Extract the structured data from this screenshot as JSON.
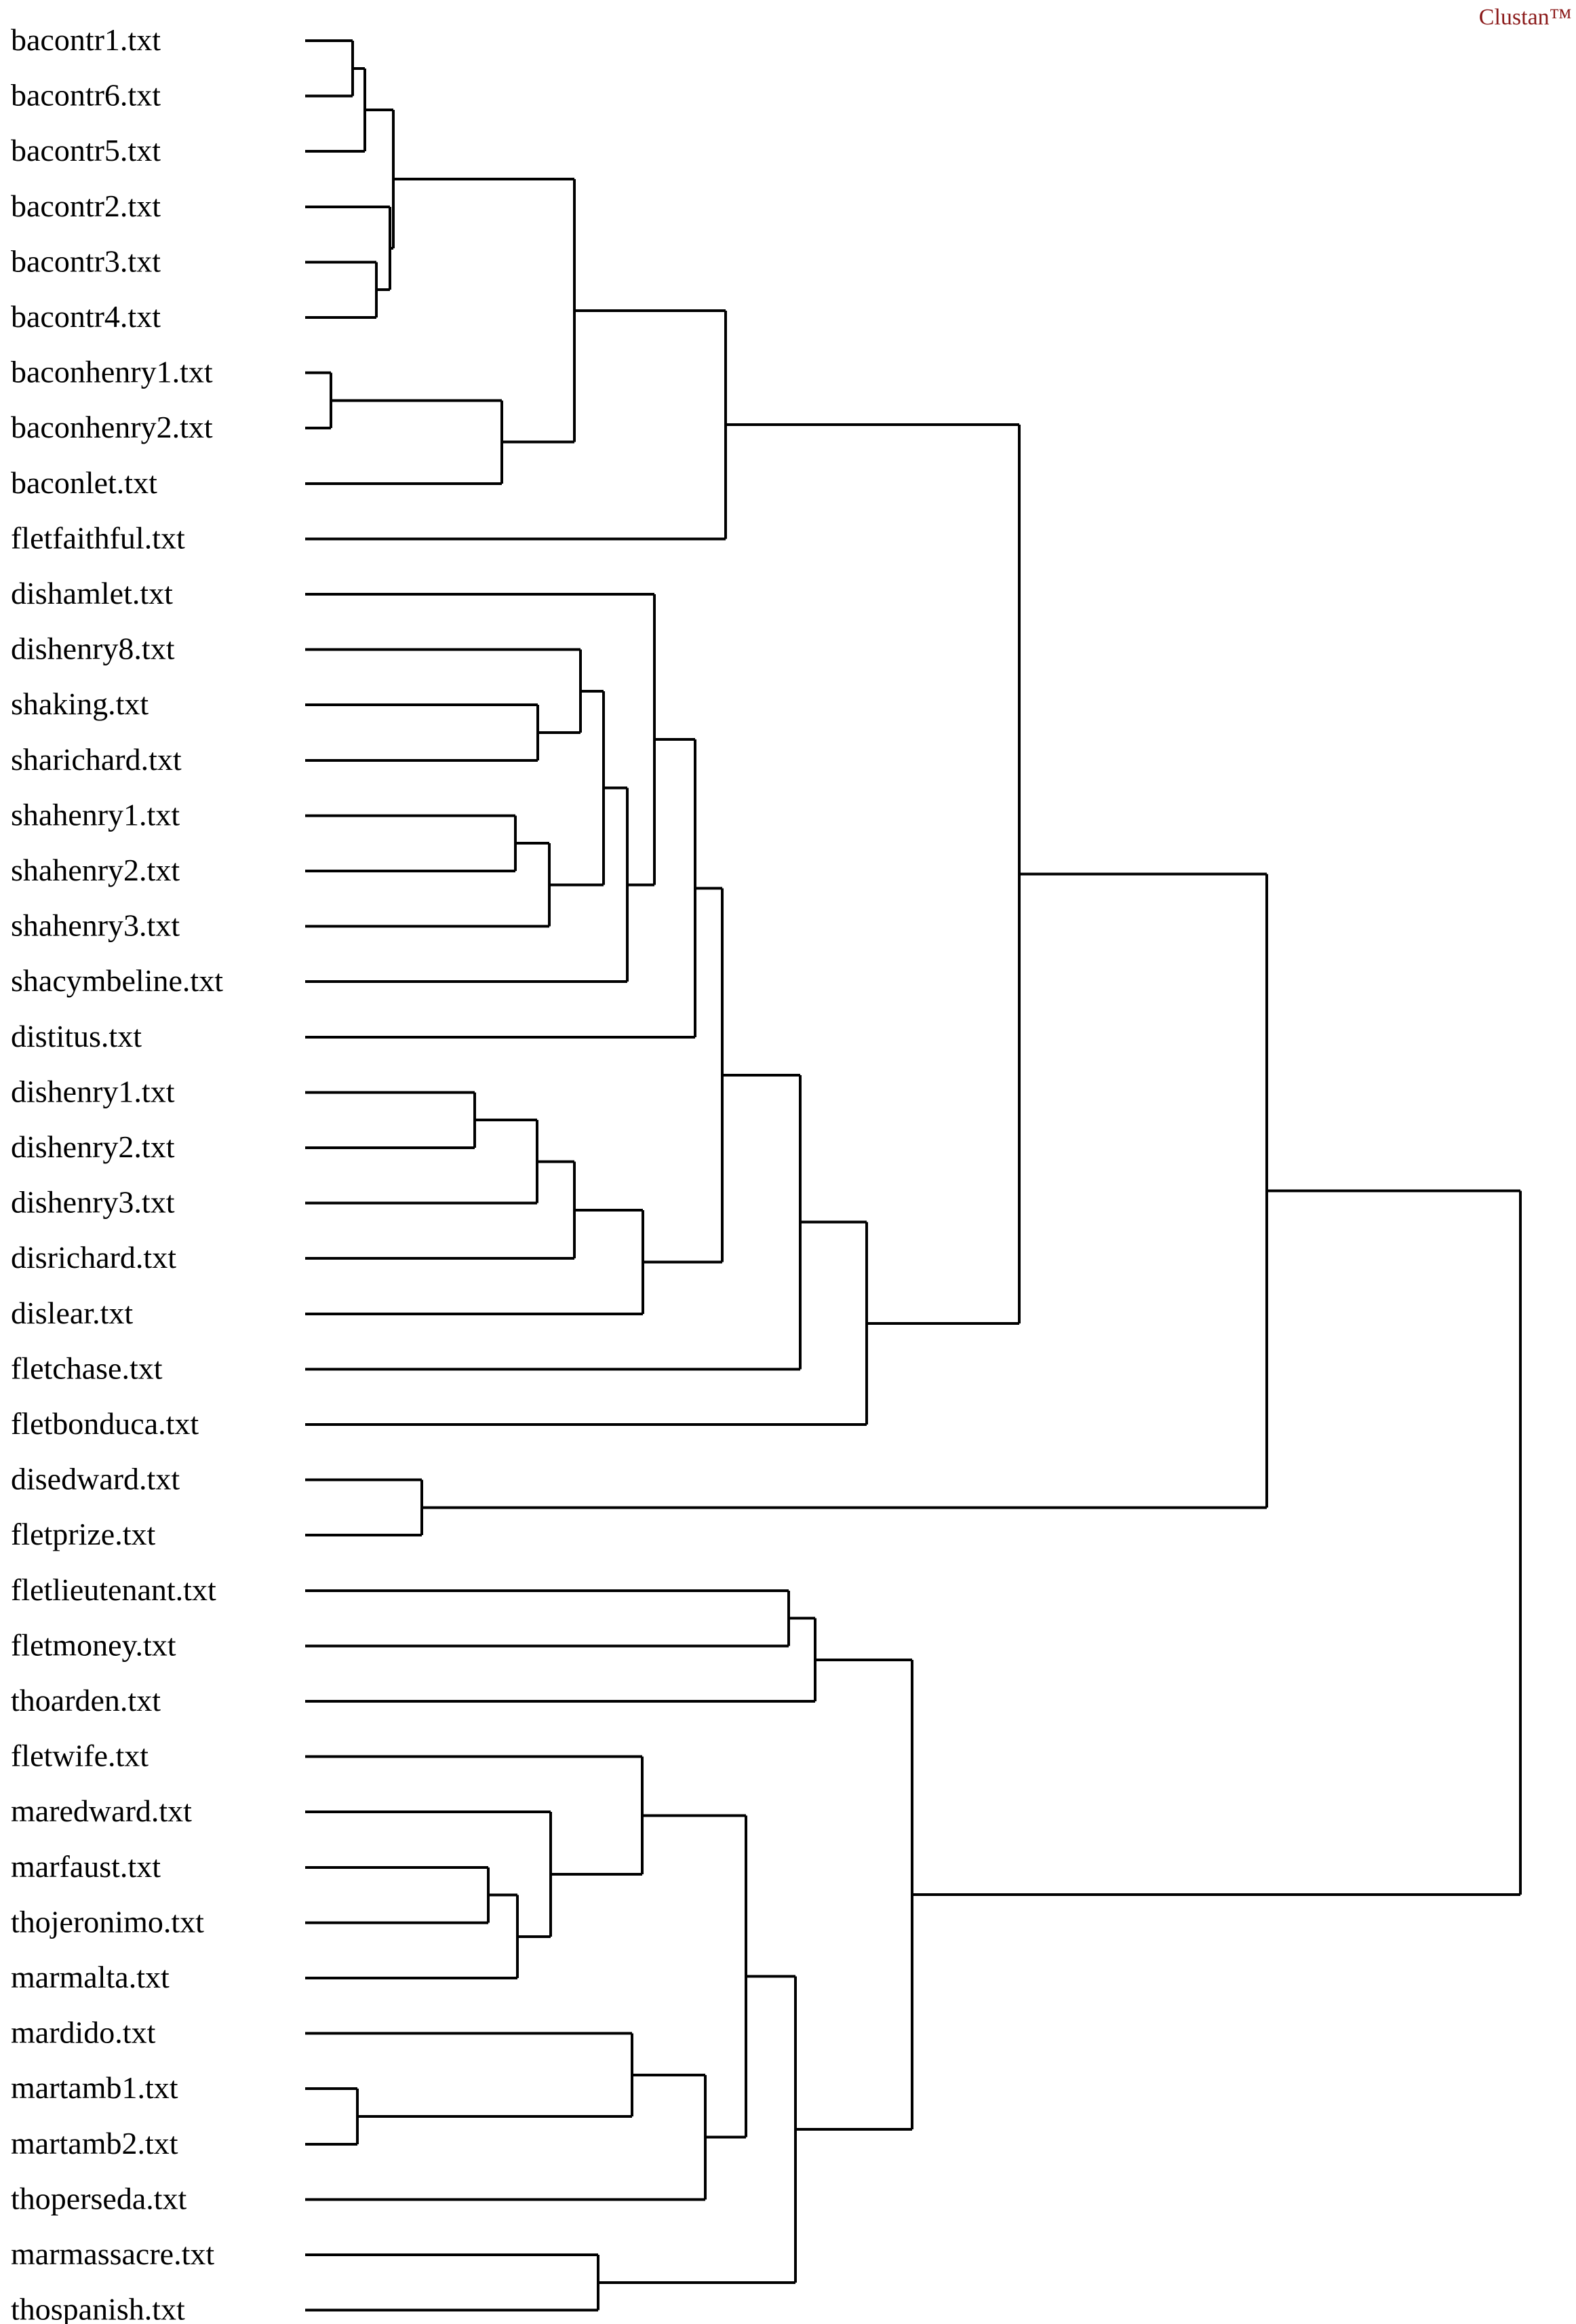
{
  "watermark": "Clustan™",
  "leaves": [
    "bacontr1.txt",
    "bacontr6.txt",
    "bacontr5.txt",
    "bacontr2.txt",
    "bacontr3.txt",
    "bacontr4.txt",
    "baconhenry1.txt",
    "baconhenry2.txt",
    "baconlet.txt",
    "fletfaithful.txt",
    "dishamlet.txt",
    "dishenry8.txt",
    "shaking.txt",
    "sharichard.txt",
    "shahenry1.txt",
    "shahenry2.txt",
    "shahenry3.txt",
    "shacymbeline.txt",
    "distitus.txt",
    "dishenry1.txt",
    "dishenry2.txt",
    "dishenry3.txt",
    "disrichard.txt",
    "dislear.txt",
    "fletchase.txt",
    "fletbonduca.txt",
    "disedward.txt",
    "fletprize.txt",
    "fletlieutenant.txt",
    "fletmoney.txt",
    "thoarden.txt",
    "fletwife.txt",
    "maredward.txt",
    "marfaust.txt",
    "thojeronimo.txt",
    "marmalta.txt",
    "mardido.txt",
    "martamb1.txt",
    "martamb2.txt",
    "thoperseda.txt",
    "marmassacre.txt",
    "thospanish.txt"
  ]
}
